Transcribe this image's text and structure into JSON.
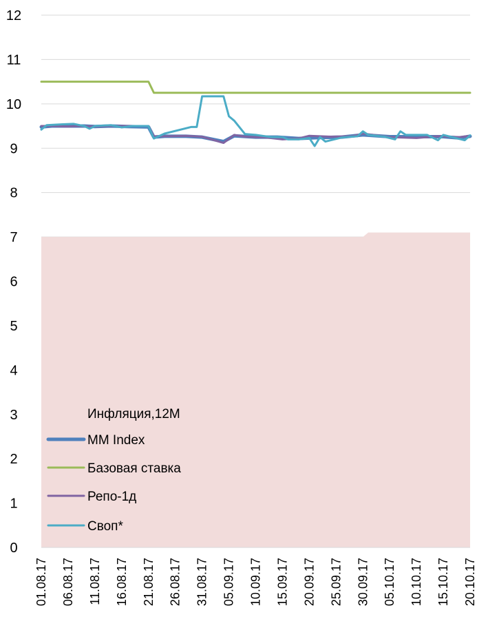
{
  "chart_data": {
    "type": "line",
    "title": "",
    "xlabel": "",
    "ylabel": "",
    "ylim": [
      0,
      12
    ],
    "yticks": [
      "0",
      "1",
      "2",
      "3",
      "4",
      "5",
      "6",
      "7",
      "8",
      "9",
      "10",
      "11",
      "12"
    ],
    "grid": true,
    "legend_position": "bottom-left",
    "x_tick_labels": [
      "01.08.17",
      "06.08.17",
      "11.08.17",
      "16.08.17",
      "21.08.17",
      "26.08.17",
      "31.08.17",
      "05.09.17",
      "10.09.17",
      "15.09.17",
      "20.09.17",
      "25.09.17",
      "30.09.17",
      "05.10.17",
      "10.10.17",
      "15.10.17",
      "20.10.17"
    ],
    "x_start": "01.08.17",
    "x_end": "20.10.17",
    "series": [
      {
        "name": "Инфляция,12M",
        "kind": "area",
        "color": "#f2dcdb",
        "points": [
          [
            "01.08.17",
            7.0
          ],
          [
            "30.09.17",
            7.0
          ],
          [
            "01.10.17",
            7.1
          ],
          [
            "20.10.17",
            7.1
          ]
        ]
      },
      {
        "name": "MM Index",
        "kind": "line",
        "color": "#4f81bd",
        "points": [
          [
            "01.08.17",
            9.48
          ],
          [
            "03.08.17",
            9.5
          ],
          [
            "06.08.17",
            9.5
          ],
          [
            "09.08.17",
            9.5
          ],
          [
            "11.08.17",
            9.49
          ],
          [
            "14.08.17",
            9.5
          ],
          [
            "17.08.17",
            9.49
          ],
          [
            "21.08.17",
            9.48
          ],
          [
            "22.08.17",
            9.25
          ],
          [
            "24.08.17",
            9.27
          ],
          [
            "28.08.17",
            9.27
          ],
          [
            "31.08.17",
            9.25
          ],
          [
            "04.09.17",
            9.15
          ],
          [
            "06.09.17",
            9.28
          ],
          [
            "10.09.17",
            9.25
          ],
          [
            "14.09.17",
            9.25
          ],
          [
            "18.09.17",
            9.22
          ],
          [
            "22.09.17",
            9.24
          ],
          [
            "26.09.17",
            9.25
          ],
          [
            "30.09.17",
            9.3
          ],
          [
            "05.10.17",
            9.26
          ],
          [
            "10.10.17",
            9.26
          ],
          [
            "15.10.17",
            9.26
          ],
          [
            "18.10.17",
            9.23
          ],
          [
            "20.10.17",
            9.27
          ]
        ]
      },
      {
        "name": "Базовая ставка",
        "kind": "line",
        "color": "#9bbb59",
        "points": [
          [
            "01.08.17",
            10.5
          ],
          [
            "21.08.17",
            10.5
          ],
          [
            "22.08.17",
            10.25
          ],
          [
            "20.10.17",
            10.25
          ]
        ]
      },
      {
        "name": "Репо-1д",
        "kind": "line",
        "color": "#8064a2",
        "points": [
          [
            "01.08.17",
            9.5
          ],
          [
            "03.08.17",
            9.5
          ],
          [
            "06.08.17",
            9.49
          ],
          [
            "08.08.17",
            9.5
          ],
          [
            "11.08.17",
            9.49
          ],
          [
            "14.08.17",
            9.5
          ],
          [
            "17.08.17",
            9.5
          ],
          [
            "21.08.17",
            9.5
          ],
          [
            "22.08.17",
            9.27
          ],
          [
            "25.08.17",
            9.27
          ],
          [
            "28.08.17",
            9.28
          ],
          [
            "31.08.17",
            9.26
          ],
          [
            "04.09.17",
            9.12
          ],
          [
            "06.09.17",
            9.3
          ],
          [
            "08.09.17",
            9.26
          ],
          [
            "12.09.17",
            9.24
          ],
          [
            "15.09.17",
            9.2
          ],
          [
            "18.09.17",
            9.22
          ],
          [
            "20.09.17",
            9.28
          ],
          [
            "24.09.17",
            9.26
          ],
          [
            "28.09.17",
            9.27
          ],
          [
            "30.09.17",
            9.33
          ],
          [
            "05.10.17",
            9.25
          ],
          [
            "10.10.17",
            9.23
          ],
          [
            "14.10.17",
            9.27
          ],
          [
            "18.10.17",
            9.25
          ],
          [
            "20.10.17",
            9.28
          ]
        ]
      },
      {
        "name": "Своп*",
        "kind": "line",
        "color": "#4bacc6",
        "points": [
          [
            "01.08.17",
            9.42
          ],
          [
            "02.08.17",
            9.52
          ],
          [
            "05.08.17",
            9.54
          ],
          [
            "07.08.17",
            9.55
          ],
          [
            "09.08.17",
            9.5
          ],
          [
            "10.08.17",
            9.44
          ],
          [
            "11.08.17",
            9.5
          ],
          [
            "14.08.17",
            9.52
          ],
          [
            "16.08.17",
            9.47
          ],
          [
            "18.08.17",
            9.5
          ],
          [
            "21.08.17",
            9.5
          ],
          [
            "22.08.17",
            9.22
          ],
          [
            "24.08.17",
            9.33
          ],
          [
            "29.08.17",
            9.48
          ],
          [
            "30.08.17",
            9.48
          ],
          [
            "31.08.17",
            10.17
          ],
          [
            "03.09.17",
            10.17
          ],
          [
            "04.09.17",
            10.17
          ],
          [
            "05.09.17",
            9.72
          ],
          [
            "06.09.17",
            9.62
          ],
          [
            "08.09.17",
            9.32
          ],
          [
            "10.09.17",
            9.3
          ],
          [
            "13.09.17",
            9.25
          ],
          [
            "15.09.17",
            9.25
          ],
          [
            "16.09.17",
            9.2
          ],
          [
            "18.09.17",
            9.2
          ],
          [
            "20.09.17",
            9.23
          ],
          [
            "21.09.17",
            9.05
          ],
          [
            "22.09.17",
            9.25
          ],
          [
            "23.09.17",
            9.15
          ],
          [
            "26.09.17",
            9.24
          ],
          [
            "29.09.17",
            9.27
          ],
          [
            "30.09.17",
            9.38
          ],
          [
            "01.10.17",
            9.3
          ],
          [
            "04.10.17",
            9.26
          ],
          [
            "06.10.17",
            9.2
          ],
          [
            "07.10.17",
            9.38
          ],
          [
            "08.10.17",
            9.3
          ],
          [
            "12.10.17",
            9.3
          ],
          [
            "14.10.17",
            9.18
          ],
          [
            "15.10.17",
            9.3
          ],
          [
            "19.10.17",
            9.18
          ],
          [
            "20.10.17",
            9.29
          ]
        ]
      }
    ]
  }
}
